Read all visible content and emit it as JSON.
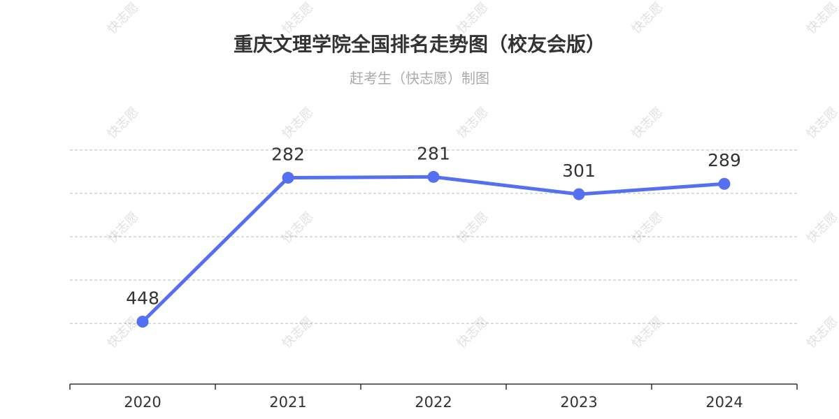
{
  "title": "重庆文理学院全国排名走势图（校友会版）",
  "subtitle": "赶考生（快志愿）制图",
  "watermark": "快志愿",
  "chart_data": {
    "type": "line",
    "title": "重庆文理学院全国排名走势图（校友会版）",
    "subtitle": "赶考生（快志愿）制图",
    "categories": [
      "2020",
      "2021",
      "2022",
      "2023",
      "2024"
    ],
    "series": [
      {
        "values": [
          448,
          282,
          281,
          301,
          289
        ],
        "color": "#5470f0"
      }
    ],
    "y_inverted": true,
    "ylim": [
      230,
      520
    ],
    "y_ticks": [
      250,
      300,
      350,
      400,
      450
    ],
    "grid": true,
    "grid_style": "dashed",
    "show_y_tick_labels": false,
    "data_labels": true,
    "legend": "none"
  }
}
